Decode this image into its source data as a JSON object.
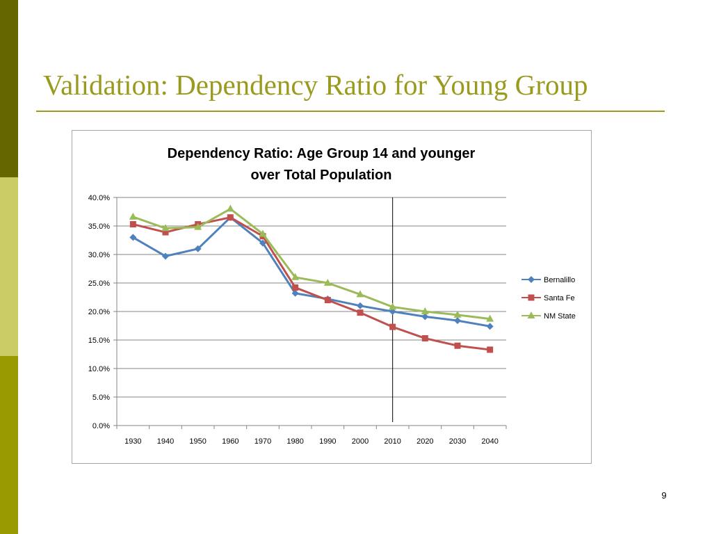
{
  "slide": {
    "title": "Validation: Dependency Ratio for Young Group",
    "page_number": "9",
    "theme": {
      "title_color": "#9a9a1e",
      "rule_color": "#9a9a1e",
      "bar_dark": "#666600",
      "bar_light": "#cccc66",
      "bar_mid": "#999900"
    }
  },
  "chart_data": {
    "type": "line",
    "title_lines": [
      "Dependency Ratio: Age Group 14 and younger",
      "over Total Population"
    ],
    "categories": [
      "1930",
      "1940",
      "1950",
      "1960",
      "1970",
      "1980",
      "1990",
      "2000",
      "2010",
      "2020",
      "2030",
      "2040"
    ],
    "ylim": [
      0,
      40
    ],
    "y_ticks": [
      "0.0%",
      "5.0%",
      "10.0%",
      "15.0%",
      "20.0%",
      "25.0%",
      "30.0%",
      "35.0%",
      "40.0%"
    ],
    "grid": true,
    "legend_position": "right",
    "reference_line_at": "2010",
    "series": [
      {
        "name": "Bernalillo",
        "color": "#4f81bd",
        "marker": "diamond",
        "values": [
          33.0,
          29.7,
          31.0,
          36.5,
          32.0,
          23.2,
          22.2,
          21.0,
          20.0,
          19.1,
          18.4,
          17.4
        ]
      },
      {
        "name": "Santa Fe",
        "color": "#c0504d",
        "marker": "square",
        "values": [
          35.3,
          33.9,
          35.3,
          36.5,
          33.2,
          24.2,
          22.0,
          19.8,
          17.3,
          15.3,
          14.0,
          13.3
        ]
      },
      {
        "name": "NM State",
        "color": "#9bbb59",
        "marker": "triangle",
        "values": [
          36.6,
          34.6,
          34.8,
          38.0,
          33.6,
          26.0,
          25.0,
          23.0,
          20.8,
          20.0,
          19.4,
          18.7
        ]
      }
    ]
  }
}
